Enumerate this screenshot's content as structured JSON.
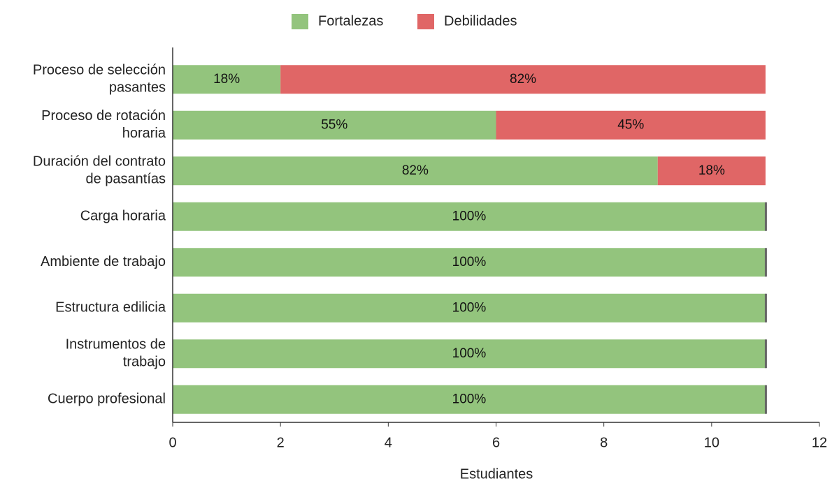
{
  "chart_data": {
    "type": "stacked-bar-horizontal",
    "x_label": "Estudiantes",
    "categories": [
      "Proceso de selección\npasantes",
      "Proceso de rotación\nhoraria",
      "Duración del contrato\nde pasantías",
      "Carga horaria",
      "Ambiente de trabajo",
      "Estructura edilicia",
      "Instrumentos de\ntrabajo",
      "Cuerpo profesional"
    ],
    "series": [
      {
        "name": "Fortalezas",
        "color": "#93c47d",
        "values": [
          2,
          6,
          9,
          11,
          11,
          11,
          11,
          11
        ],
        "value_labels": [
          "18%",
          "55%",
          "82%",
          "100%",
          "100%",
          "100%",
          "100%",
          "100%"
        ]
      },
      {
        "name": "Debilidades",
        "color": "#e06666",
        "values": [
          9,
          5,
          2,
          0,
          0,
          0,
          0,
          0
        ],
        "value_labels": [
          "82%",
          "45%",
          "18%",
          null,
          null,
          null,
          null,
          null
        ]
      }
    ],
    "xlim": [
      0,
      12
    ],
    "xticks": [
      0,
      2,
      4,
      6,
      8,
      10,
      12
    ],
    "legend": "top"
  }
}
